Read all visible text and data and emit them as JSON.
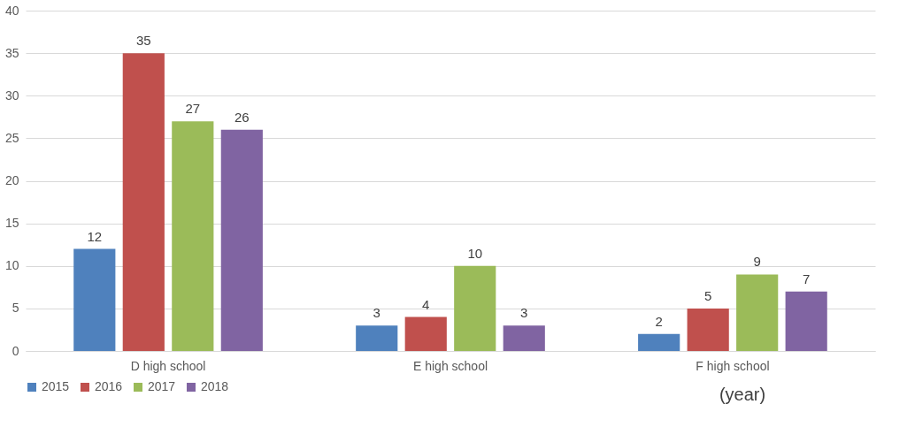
{
  "chart_data": {
    "type": "bar",
    "categories": [
      "D high school",
      "E high school",
      "F high school"
    ],
    "series": [
      {
        "name": "2015",
        "color": "#4f81bd",
        "values": [
          12,
          3,
          2
        ]
      },
      {
        "name": "2016",
        "color": "#c0504d",
        "values": [
          35,
          4,
          5
        ]
      },
      {
        "name": "2017",
        "color": "#9bbb59",
        "values": [
          27,
          10,
          9
        ]
      },
      {
        "name": "2018",
        "color": "#8064a2",
        "values": [
          26,
          3,
          7
        ]
      }
    ],
    "ylim": [
      0,
      40
    ],
    "yticks": [
      0,
      5,
      10,
      15,
      20,
      25,
      30,
      35,
      40
    ],
    "grid": "y",
    "legend": "bottom",
    "data_labels": true,
    "annotations": [
      "(year)"
    ]
  }
}
